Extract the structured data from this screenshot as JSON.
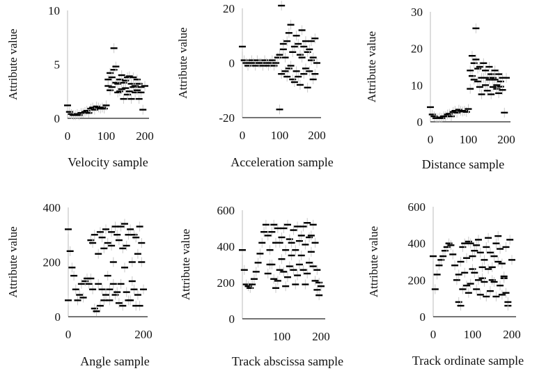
{
  "chart_data": [
    {
      "type": "scatter",
      "title": "",
      "ylabel": "Attribute value",
      "xlabel": "Velocity sample",
      "xlim": [
        0,
        200
      ],
      "ylim": [
        0,
        10
      ],
      "xticks": [
        0,
        100,
        200
      ],
      "yticks": [
        0,
        5,
        10
      ],
      "x": [
        0,
        5,
        10,
        15,
        20,
        25,
        30,
        35,
        40,
        45,
        50,
        55,
        60,
        65,
        70,
        75,
        80,
        85,
        90,
        95,
        100,
        105,
        110,
        115,
        120,
        125,
        130,
        135,
        140,
        145,
        150,
        155,
        160,
        165,
        170,
        175,
        180,
        185,
        190,
        195,
        200
      ],
      "y": [
        1.2,
        0.6,
        0.4,
        0.3,
        0.3,
        0.4,
        0.3,
        0.5,
        0.5,
        0.6,
        0.7,
        0.5,
        0.9,
        1.0,
        0.8,
        1.1,
        1.0,
        0.9,
        1.0,
        0.9,
        1.2,
        3.0,
        4.2,
        3.8,
        6.5,
        4.8,
        3.2,
        2.5,
        4.0,
        3.3,
        2.8,
        3.8,
        2.5,
        3.2,
        3.8,
        3.0,
        2.6,
        3.2,
        2.9,
        0.8,
        3.0
      ],
      "y2": [
        null,
        null,
        null,
        null,
        null,
        null,
        null,
        null,
        null,
        null,
        null,
        null,
        null,
        null,
        null,
        null,
        null,
        null,
        null,
        null,
        null,
        3.6,
        2.6,
        2.9,
        4.5,
        3.3,
        2.4,
        3.6,
        2.7,
        1.8,
        3.5,
        2.2,
        3.9,
        1.8,
        2.9,
        2.4,
        3.6,
        1.8,
        2.4,
        null,
        null
      ]
    },
    {
      "type": "scatter",
      "title": "",
      "ylabel": "Attribute value",
      "xlabel": "Acceleration sample",
      "xlim": [
        0,
        200
      ],
      "ylim": [
        -20,
        20
      ],
      "xticks": [
        0,
        100,
        200
      ],
      "yticks": [
        -20,
        0,
        20
      ],
      "x": [
        0,
        5,
        10,
        15,
        20,
        25,
        30,
        35,
        40,
        45,
        50,
        55,
        60,
        65,
        70,
        75,
        80,
        85,
        90,
        95,
        100,
        105,
        110,
        115,
        120,
        125,
        130,
        135,
        140,
        145,
        150,
        155,
        160,
        165,
        170,
        175,
        180,
        185,
        190,
        195,
        200
      ],
      "y": [
        6,
        1,
        0,
        -1,
        0,
        1,
        0,
        -1,
        1,
        0,
        0,
        -1,
        1,
        0,
        -1,
        0,
        1,
        -1,
        0,
        2,
        -17,
        21,
        5,
        -3,
        8,
        -2,
        14,
        4,
        -7,
        10,
        -5,
        3,
        12,
        -4,
        8,
        -9,
        5,
        1,
        -6,
        9,
        0
      ],
      "y2": [
        null,
        null,
        null,
        null,
        null,
        null,
        null,
        null,
        null,
        null,
        null,
        null,
        null,
        null,
        null,
        null,
        null,
        null,
        null,
        null,
        3,
        -4,
        7,
        2,
        -5,
        11,
        -1,
        -6,
        6,
        -3,
        7,
        -8,
        2,
        6,
        -2,
        4,
        -3,
        8,
        2,
        -4,
        null
      ]
    },
    {
      "type": "scatter",
      "title": "",
      "ylabel": "Attribute value",
      "xlabel": "Distance sample",
      "xlim": [
        0,
        200
      ],
      "ylim": [
        0,
        30
      ],
      "xticks": [
        0,
        100,
        200
      ],
      "yticks": [
        0,
        10,
        20,
        30
      ],
      "x": [
        0,
        5,
        10,
        15,
        20,
        25,
        30,
        35,
        40,
        45,
        50,
        55,
        60,
        65,
        70,
        75,
        80,
        85,
        90,
        95,
        100,
        105,
        110,
        115,
        120,
        125,
        130,
        135,
        140,
        145,
        150,
        155,
        160,
        165,
        170,
        175,
        180,
        185,
        190,
        195,
        200
      ],
      "y": [
        4,
        2,
        1.5,
        1,
        1,
        1.2,
        1,
        1.5,
        1.5,
        2,
        2.2,
        1.5,
        2.7,
        3,
        2.5,
        3.3,
        3,
        2.8,
        3,
        2.7,
        3.5,
        9,
        12.5,
        11.5,
        25.5,
        14.5,
        9.5,
        7.5,
        12,
        10,
        8.5,
        11.5,
        7.5,
        9.5,
        11.5,
        9,
        7.8,
        9.6,
        8.7,
        2.5,
        12
      ],
      "y2": [
        null,
        null,
        null,
        null,
        null,
        null,
        null,
        null,
        null,
        null,
        null,
        null,
        null,
        null,
        null,
        null,
        null,
        null,
        null,
        null,
        null,
        14,
        18,
        16,
        17,
        11,
        15,
        12,
        16,
        14,
        12,
        15,
        13,
        12,
        14,
        10,
        13,
        11,
        12,
        null,
        null
      ]
    },
    {
      "type": "scatter",
      "title": "",
      "ylabel": "Attribute value",
      "xlabel": "Angle sample",
      "xlim": [
        0,
        200
      ],
      "ylim": [
        0,
        400
      ],
      "xticks": [
        0,
        200
      ],
      "yticks": [
        0,
        200,
        400
      ],
      "x": [
        0,
        5,
        10,
        15,
        20,
        25,
        30,
        35,
        40,
        45,
        50,
        55,
        60,
        65,
        70,
        75,
        80,
        85,
        90,
        95,
        100,
        105,
        110,
        115,
        120,
        125,
        130,
        135,
        140,
        145,
        150,
        155,
        160,
        165,
        170,
        175,
        180,
        185,
        190,
        195,
        200
      ],
      "y": [
        320,
        240,
        180,
        150,
        100,
        60,
        80,
        120,
        70,
        130,
        140,
        120,
        280,
        100,
        30,
        20,
        120,
        40,
        290,
        60,
        320,
        150,
        100,
        260,
        200,
        80,
        300,
        50,
        120,
        250,
        340,
        90,
        300,
        60,
        200,
        100,
        290,
        80,
        40,
        270,
        100
      ],
      "y2": [
        60,
        null,
        null,
        null,
        null,
        null,
        null,
        null,
        null,
        null,
        null,
        null,
        140,
        270,
        300,
        20,
        230,
        310,
        100,
        250,
        80,
        270,
        60,
        310,
        120,
        330,
        90,
        280,
        330,
        40,
        180,
        260,
        60,
        320,
        130,
        300,
        40,
        230,
        330,
        200,
        null
      ]
    },
    {
      "type": "scatter",
      "title": "",
      "ylabel": "Attribute value",
      "xlabel": "Track abscissa sample",
      "xlim": [
        0,
        200
      ],
      "ylim": [
        0,
        600
      ],
      "xticks": [
        100,
        200
      ],
      "yticks": [
        0,
        200,
        400,
        600
      ],
      "x": [
        0,
        5,
        10,
        15,
        20,
        25,
        30,
        35,
        40,
        45,
        50,
        55,
        60,
        65,
        70,
        75,
        80,
        85,
        90,
        95,
        100,
        105,
        110,
        115,
        120,
        125,
        130,
        135,
        140,
        145,
        150,
        155,
        160,
        165,
        170,
        175,
        180,
        185,
        190,
        195,
        200
      ],
      "y": [
        380,
        270,
        190,
        180,
        170,
        190,
        220,
        260,
        310,
        360,
        420,
        480,
        520,
        460,
        380,
        300,
        220,
        170,
        500,
        420,
        330,
        260,
        180,
        520,
        440,
        350,
        270,
        190,
        510,
        430,
        350,
        270,
        190,
        530,
        450,
        370,
        290,
        210,
        160,
        200,
        180
      ],
      "y2": [
        null,
        null,
        null,
        null,
        null,
        null,
        null,
        null,
        null,
        null,
        null,
        null,
        null,
        250,
        300,
        480,
        520,
        420,
        210,
        270,
        450,
        500,
        380,
        230,
        290,
        420,
        490,
        380,
        240,
        300,
        460,
        510,
        410,
        250,
        310,
        460,
        520,
        420,
        270,
        130,
        null
      ]
    },
    {
      "type": "scatter",
      "title": "",
      "ylabel": "Attribute value",
      "xlabel": "Track ordinate sample",
      "xlim": [
        0,
        200
      ],
      "ylim": [
        0,
        600
      ],
      "xticks": [
        0,
        100,
        200
      ],
      "yticks": [
        0,
        200,
        400,
        600
      ],
      "x": [
        0,
        5,
        10,
        15,
        20,
        25,
        30,
        35,
        40,
        45,
        50,
        55,
        60,
        65,
        70,
        75,
        80,
        85,
        90,
        95,
        100,
        105,
        110,
        115,
        120,
        125,
        130,
        135,
        140,
        145,
        150,
        155,
        160,
        165,
        170,
        175,
        180,
        185,
        190,
        195,
        200
      ],
      "y": [
        330,
        150,
        230,
        280,
        310,
        330,
        360,
        380,
        400,
        390,
        340,
        280,
        200,
        80,
        60,
        150,
        240,
        320,
        410,
        400,
        330,
        240,
        150,
        420,
        350,
        270,
        190,
        110,
        430,
        350,
        270,
        190,
        110,
        440,
        370,
        290,
        210,
        130,
        60,
        420,
        310
      ],
      "y2": [
        null,
        null,
        null,
        null,
        null,
        null,
        null,
        null,
        null,
        null,
        null,
        null,
        null,
        230,
        300,
        380,
        400,
        170,
        130,
        180,
        260,
        360,
        390,
        200,
        120,
        210,
        310,
        380,
        260,
        140,
        200,
        330,
        400,
        300,
        170,
        120,
        220,
        380,
        80,
        null,
        null
      ]
    }
  ]
}
